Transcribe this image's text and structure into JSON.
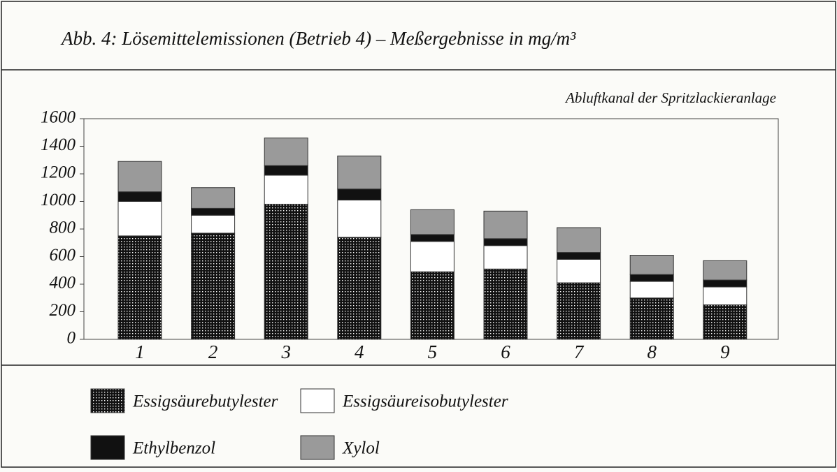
{
  "chart_data": {
    "type": "bar",
    "stacked": true,
    "title": "Abb. 4:  Lösemittelemissionen (Betrieb 4) – Meßergebnisse in mg/m³",
    "subtitle": "Abluftkanal der Spritzlackieranlage",
    "categories": [
      "1",
      "2",
      "3",
      "4",
      "5",
      "6",
      "7",
      "8",
      "9"
    ],
    "series": [
      {
        "name": "Essigsäurebutylester",
        "color": "dotted",
        "values": [
          750,
          770,
          980,
          740,
          490,
          510,
          410,
          300,
          250
        ]
      },
      {
        "name": "Essigsäureisobutylester",
        "color": "#ffffff",
        "values": [
          250,
          130,
          210,
          270,
          220,
          170,
          170,
          120,
          130
        ]
      },
      {
        "name": "Ethylbenzol",
        "color": "#111111",
        "values": [
          70,
          50,
          70,
          80,
          50,
          50,
          50,
          50,
          50
        ]
      },
      {
        "name": "Xylol",
        "color": "#9a9a9a",
        "values": [
          220,
          150,
          200,
          240,
          180,
          200,
          180,
          140,
          140
        ]
      }
    ],
    "ylim": [
      0,
      1600
    ],
    "yticks": [
      0,
      200,
      400,
      600,
      800,
      1000,
      1200,
      1400,
      1600
    ],
    "grid": false
  }
}
